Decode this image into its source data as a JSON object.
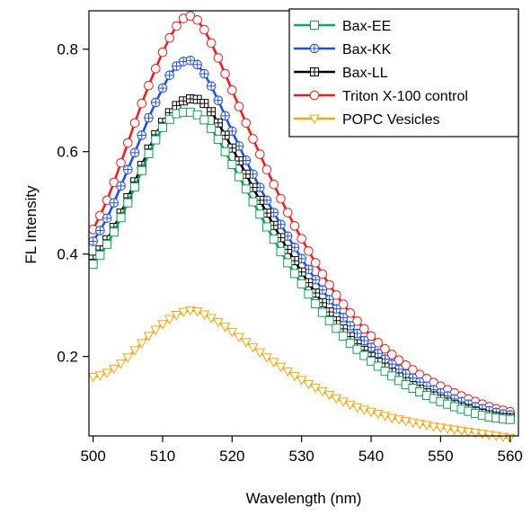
{
  "chart_data": {
    "type": "line",
    "xlabel": "Wavelength (nm)",
    "ylabel": "FL Intensity",
    "xlim": [
      499.4,
      561.2
    ],
    "ylim": [
      0.045,
      0.875
    ],
    "x_ticks": [
      500,
      510,
      520,
      530,
      540,
      550,
      560
    ],
    "x_tick_labels": [
      "500",
      "510",
      "520",
      "530",
      "540",
      "550",
      "560"
    ],
    "y_ticks": [
      0.2,
      0.4,
      0.6,
      0.8
    ],
    "y_tick_labels": [
      "0.2",
      "0.4",
      "0.6",
      "0.8"
    ],
    "legend_position": "top-right",
    "x_start": 500,
    "x_step": 1,
    "series": [
      {
        "name": "Bax-EE",
        "color": "#14a05a",
        "marker": "square",
        "values": [
          0.38,
          0.398,
          0.419,
          0.443,
          0.471,
          0.5,
          0.531,
          0.563,
          0.596,
          0.623,
          0.647,
          0.663,
          0.674,
          0.677,
          0.677,
          0.672,
          0.662,
          0.645,
          0.624,
          0.6,
          0.575,
          0.551,
          0.527,
          0.502,
          0.478,
          0.453,
          0.429,
          0.405,
          0.383,
          0.362,
          0.342,
          0.322,
          0.303,
          0.286,
          0.27,
          0.255,
          0.24,
          0.226,
          0.214,
          0.202,
          0.191,
          0.181,
          0.171,
          0.162,
          0.153,
          0.145,
          0.138,
          0.131,
          0.124,
          0.118,
          0.112,
          0.107,
          0.102,
          0.097,
          0.093,
          0.089,
          0.085,
          0.082,
          0.08,
          0.078,
          0.077
        ]
      },
      {
        "name": "Bax-KK",
        "color": "#1f4fe0",
        "marker": "circle-plus",
        "values": [
          0.425,
          0.446,
          0.47,
          0.5,
          0.533,
          0.565,
          0.598,
          0.632,
          0.666,
          0.696,
          0.724,
          0.749,
          0.767,
          0.776,
          0.778,
          0.77,
          0.752,
          0.728,
          0.7,
          0.67,
          0.64,
          0.611,
          0.583,
          0.556,
          0.53,
          0.505,
          0.481,
          0.458,
          0.435,
          0.413,
          0.391,
          0.37,
          0.35,
          0.33,
          0.311,
          0.293,
          0.276,
          0.26,
          0.245,
          0.231,
          0.218,
          0.206,
          0.195,
          0.185,
          0.175,
          0.166,
          0.158,
          0.15,
          0.142,
          0.135,
          0.129,
          0.123,
          0.117,
          0.112,
          0.107,
          0.102,
          0.098,
          0.094,
          0.091,
          0.088,
          0.086
        ]
      },
      {
        "name": "Bax-LL",
        "color": "#000000",
        "marker": "square-plus",
        "values": [
          0.39,
          0.408,
          0.428,
          0.452,
          0.48,
          0.51,
          0.541,
          0.573,
          0.605,
          0.633,
          0.657,
          0.676,
          0.69,
          0.699,
          0.703,
          0.702,
          0.694,
          0.678,
          0.656,
          0.632,
          0.607,
          0.582,
          0.556,
          0.53,
          0.505,
          0.48,
          0.456,
          0.432,
          0.409,
          0.387,
          0.365,
          0.344,
          0.324,
          0.305,
          0.287,
          0.27,
          0.254,
          0.239,
          0.225,
          0.212,
          0.2,
          0.189,
          0.179,
          0.169,
          0.16,
          0.151,
          0.143,
          0.136,
          0.129,
          0.123,
          0.117,
          0.111,
          0.106,
          0.101,
          0.097,
          0.093,
          0.089,
          0.086,
          0.083,
          0.081,
          0.08
        ]
      },
      {
        "name": "Triton X-100 control",
        "color": "#f01c1c",
        "marker": "circle",
        "values": [
          0.448,
          0.475,
          0.505,
          0.54,
          0.578,
          0.617,
          0.656,
          0.694,
          0.729,
          0.762,
          0.794,
          0.822,
          0.845,
          0.86,
          0.865,
          0.857,
          0.838,
          0.812,
          0.783,
          0.752,
          0.72,
          0.688,
          0.656,
          0.625,
          0.595,
          0.565,
          0.536,
          0.508,
          0.481,
          0.455,
          0.43,
          0.406,
          0.383,
          0.361,
          0.34,
          0.32,
          0.302,
          0.285,
          0.269,
          0.254,
          0.24,
          0.227,
          0.215,
          0.204,
          0.193,
          0.183,
          0.174,
          0.165,
          0.157,
          0.149,
          0.142,
          0.135,
          0.129,
          0.123,
          0.117,
          0.112,
          0.107,
          0.102,
          0.098,
          0.095,
          0.092
        ]
      },
      {
        "name": "POPC Vesicles",
        "color": "#f7a713",
        "marker": "triangle-down",
        "values": [
          0.16,
          0.163,
          0.168,
          0.176,
          0.186,
          0.198,
          0.212,
          0.226,
          0.24,
          0.252,
          0.263,
          0.273,
          0.281,
          0.287,
          0.29,
          0.288,
          0.282,
          0.275,
          0.267,
          0.258,
          0.248,
          0.238,
          0.228,
          0.218,
          0.208,
          0.198,
          0.189,
          0.18,
          0.171,
          0.162,
          0.154,
          0.146,
          0.139,
          0.132,
          0.125,
          0.118,
          0.112,
          0.106,
          0.101,
          0.096,
          0.092,
          0.088,
          0.084,
          0.08,
          0.077,
          0.074,
          0.071,
          0.068,
          0.066,
          0.063,
          0.061,
          0.059,
          0.057,
          0.055,
          0.053,
          0.051,
          0.049,
          0.047,
          0.045,
          0.043,
          0.041
        ]
      }
    ]
  }
}
